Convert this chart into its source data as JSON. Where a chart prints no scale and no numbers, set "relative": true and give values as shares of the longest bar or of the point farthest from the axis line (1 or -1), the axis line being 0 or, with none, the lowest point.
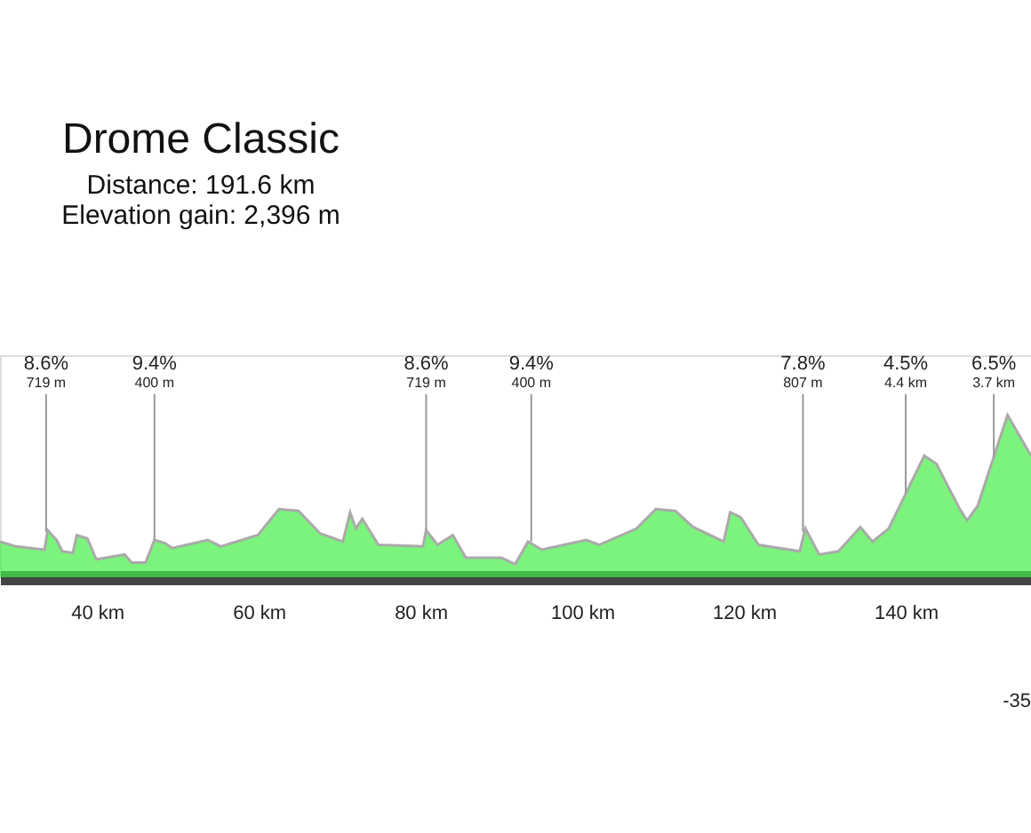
{
  "chart_data": {
    "type": "area",
    "title": "Drome Classic",
    "subtitle": [
      "Distance: 191.6 km",
      "Elevation gain: 2,396 m"
    ],
    "relative": true,
    "color": "#44ee44",
    "x": [
      28.0,
      30.0,
      33.5,
      33.9,
      35.0,
      35.7,
      37.0,
      37.5,
      38.8,
      39.9,
      43.4,
      44.3,
      46.0,
      47.1,
      48.4,
      49.3,
      53.7,
      55.3,
      59.9,
      62.5,
      64.9,
      67.6,
      70.4,
      71.3,
      72.0,
      72.8,
      74.8,
      80.3,
      80.7,
      82.1,
      84.0,
      85.6,
      90.0,
      91.7,
      93.3,
      95.0,
      100.5,
      102.1,
      106.7,
      109.1,
      111.5,
      113.7,
      117.5,
      118.3,
      119.6,
      121.8,
      126.9,
      127.6,
      129.3,
      131.7,
      134.4,
      135.9,
      137.9,
      142.3,
      143.8,
      146.7,
      147.6,
      148.9,
      152.6,
      155.5
    ],
    "values": [
      0.22,
      0.19,
      0.17,
      0.29,
      0.23,
      0.16,
      0.15,
      0.26,
      0.24,
      0.11,
      0.14,
      0.09,
      0.09,
      0.23,
      0.21,
      0.18,
      0.23,
      0.19,
      0.26,
      0.42,
      0.41,
      0.27,
      0.22,
      0.4,
      0.3,
      0.36,
      0.2,
      0.19,
      0.29,
      0.2,
      0.26,
      0.12,
      0.12,
      0.08,
      0.22,
      0.17,
      0.23,
      0.2,
      0.3,
      0.42,
      0.41,
      0.31,
      0.22,
      0.4,
      0.37,
      0.2,
      0.16,
      0.3,
      0.14,
      0.16,
      0.31,
      0.22,
      0.3,
      0.75,
      0.7,
      0.42,
      0.35,
      0.44,
      1.0,
      0.75
    ],
    "xlim": [
      28,
      155.5
    ],
    "xticks": [
      {
        "value": 40,
        "label": "40 km"
      },
      {
        "value": 60,
        "label": "60 km"
      },
      {
        "value": 80,
        "label": "80 km"
      },
      {
        "value": 100,
        "label": "100 km"
      },
      {
        "value": 120,
        "label": "120 km"
      },
      {
        "value": 140,
        "label": "140 km"
      }
    ],
    "grid": false,
    "annotations": [
      {
        "text": "8.6%",
        "x": 33.7,
        "y": 0.28
      },
      "719 m",
      {
        "text": "9.4%",
        "x": 47.1,
        "y": 0.23
      },
      "400 m",
      {
        "text": "8.6%",
        "x": 80.7,
        "y": 0.29
      },
      "719 m",
      {
        "text": "9.4%",
        "x": 93.7,
        "y": 0.22
      },
      "400 m",
      {
        "text": "7.8%",
        "x": 127.3,
        "y": 0.28
      },
      "807 m",
      {
        "text": "4.5%",
        "x": 140.0,
        "y": 0.52
      },
      "4.4 km",
      {
        "text": "6.5%",
        "x": 150.9,
        "y": 0.74
      },
      "3.7 km",
      "-35"
    ]
  }
}
